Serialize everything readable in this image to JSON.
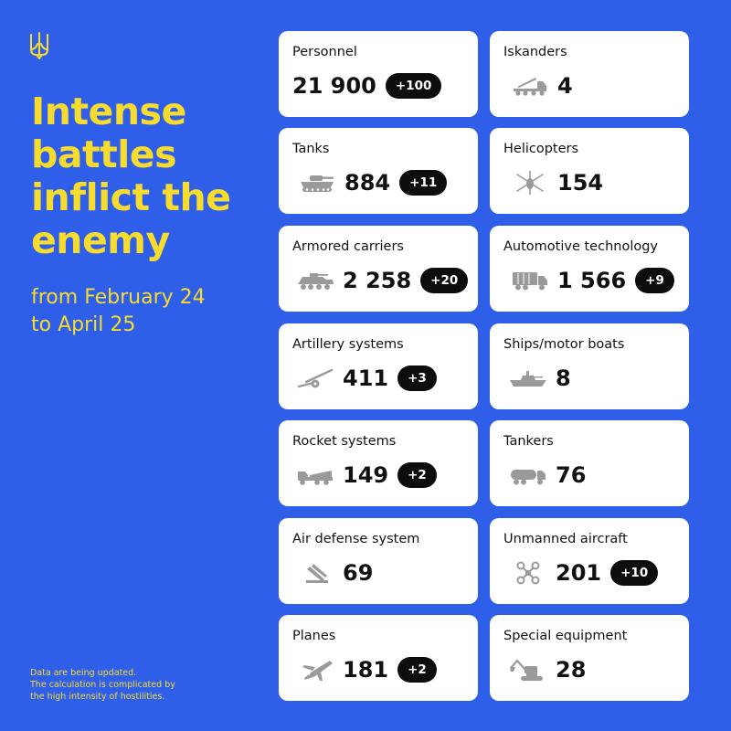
{
  "headline": {
    "lines": [
      "Intense",
      "battles",
      "inflict the",
      "enemy"
    ]
  },
  "date_range": {
    "lines": [
      "from February 24",
      "to April 25"
    ]
  },
  "footnote": {
    "lines": [
      "Data are being updated.",
      "The calculation is complicated by",
      "the high intensity of hostilities."
    ]
  },
  "colors": {
    "background": "#2f5fe8",
    "accent_yellow": "#f7dc2e",
    "card": "#ffffff",
    "badge": "#0d0d0d",
    "icon_gray": "#9a9a9a"
  },
  "cards": [
    {
      "label": "Personnel",
      "value": "21 900",
      "delta": "+100",
      "icon": "soldier-icon"
    },
    {
      "label": "Iskanders",
      "value": "4",
      "delta": "",
      "icon": "missile-launcher-icon"
    },
    {
      "label": "Tanks",
      "value": "884",
      "delta": "+11",
      "icon": "tank-icon"
    },
    {
      "label": "Helicopters",
      "value": "154",
      "delta": "",
      "icon": "helicopter-icon"
    },
    {
      "label": "Armored carriers",
      "value": "2 258",
      "delta": "+20",
      "icon": "armored-carrier-icon"
    },
    {
      "label": "Automotive technology",
      "value": "1 566",
      "delta": "+9",
      "icon": "truck-icon"
    },
    {
      "label": "Artillery systems",
      "value": "411",
      "delta": "+3",
      "icon": "artillery-icon"
    },
    {
      "label": "Ships/motor boats",
      "value": "8",
      "delta": "",
      "icon": "ship-icon"
    },
    {
      "label": "Rocket systems",
      "value": "149",
      "delta": "+2",
      "icon": "rocket-system-icon"
    },
    {
      "label": "Tankers",
      "value": "76",
      "delta": "",
      "icon": "tanker-truck-icon"
    },
    {
      "label": "Air defense system",
      "value": "69",
      "delta": "",
      "icon": "air-defense-icon"
    },
    {
      "label": "Unmanned aircraft",
      "value": "201",
      "delta": "+10",
      "icon": "drone-icon"
    },
    {
      "label": "Planes",
      "value": "181",
      "delta": "+2",
      "icon": "plane-icon"
    },
    {
      "label": "Special equipment",
      "value": "28",
      "delta": "",
      "icon": "excavator-icon"
    }
  ]
}
